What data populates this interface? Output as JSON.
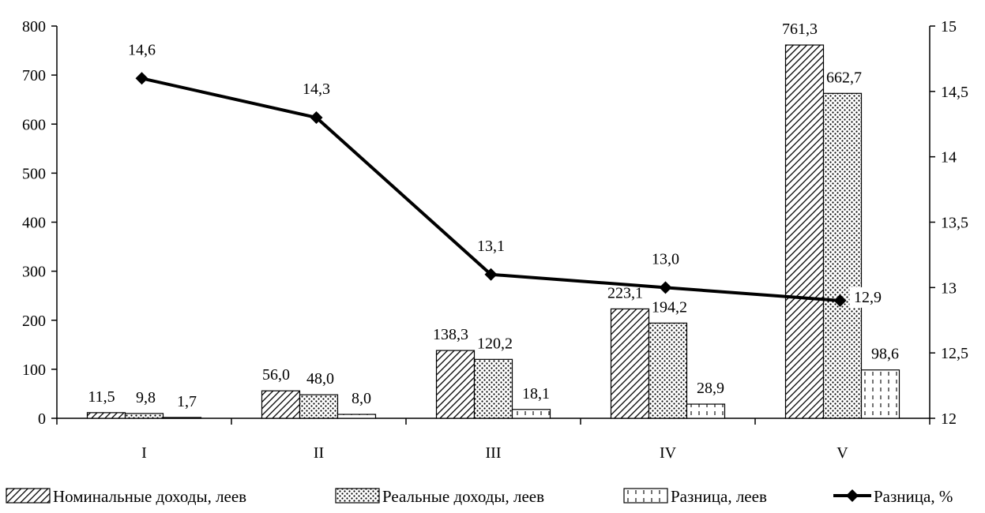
{
  "chart_data": {
    "type": "bar",
    "categories": [
      "I",
      "II",
      "III",
      "IV",
      "V"
    ],
    "series": [
      {
        "name": "Номинальные доходы, леев",
        "type": "bar",
        "axis": "left",
        "pattern": "diagonal-hatch",
        "values": [
          11.5,
          56.0,
          138.3,
          223.1,
          761.3
        ],
        "labels": [
          "11,5",
          "56,0",
          "138,3",
          "223,1",
          "761,3"
        ]
      },
      {
        "name": "Реальные доходы, леев",
        "type": "bar",
        "axis": "left",
        "pattern": "dots",
        "values": [
          9.8,
          48.0,
          120.2,
          194.2,
          662.7
        ],
        "labels": [
          "9,8",
          "48,0",
          "120,2",
          "194,2",
          "662,7"
        ]
      },
      {
        "name": "Разница, леев",
        "type": "bar",
        "axis": "left",
        "pattern": "dashed-vertical",
        "values": [
          1.7,
          8.0,
          18.1,
          28.9,
          98.6
        ],
        "labels": [
          "1,7",
          "8,0",
          "18,1",
          "28,9",
          "98,6"
        ]
      },
      {
        "name": "Разница, %",
        "type": "line",
        "axis": "right",
        "marker": "diamond",
        "values": [
          14.6,
          14.3,
          13.1,
          13.0,
          12.9
        ],
        "labels": [
          "14,6",
          "14,3",
          "13,1",
          "13,0",
          "12,9"
        ]
      }
    ],
    "y_left": {
      "min": 0,
      "max": 800,
      "ticks": [
        0,
        100,
        200,
        300,
        400,
        500,
        600,
        700,
        800
      ],
      "tick_labels": [
        "0",
        "100",
        "200",
        "300",
        "400",
        "500",
        "600",
        "700",
        "800"
      ]
    },
    "y_right": {
      "min": 12,
      "max": 15,
      "ticks": [
        12,
        12.5,
        13,
        13.5,
        14,
        14.5,
        15
      ],
      "tick_labels": [
        "12",
        "12,5",
        "13",
        "13,5",
        "14",
        "14,5",
        "15"
      ]
    },
    "legend_position": "bottom",
    "grid": false,
    "title": "",
    "xlabel": "",
    "ylabel": ""
  }
}
